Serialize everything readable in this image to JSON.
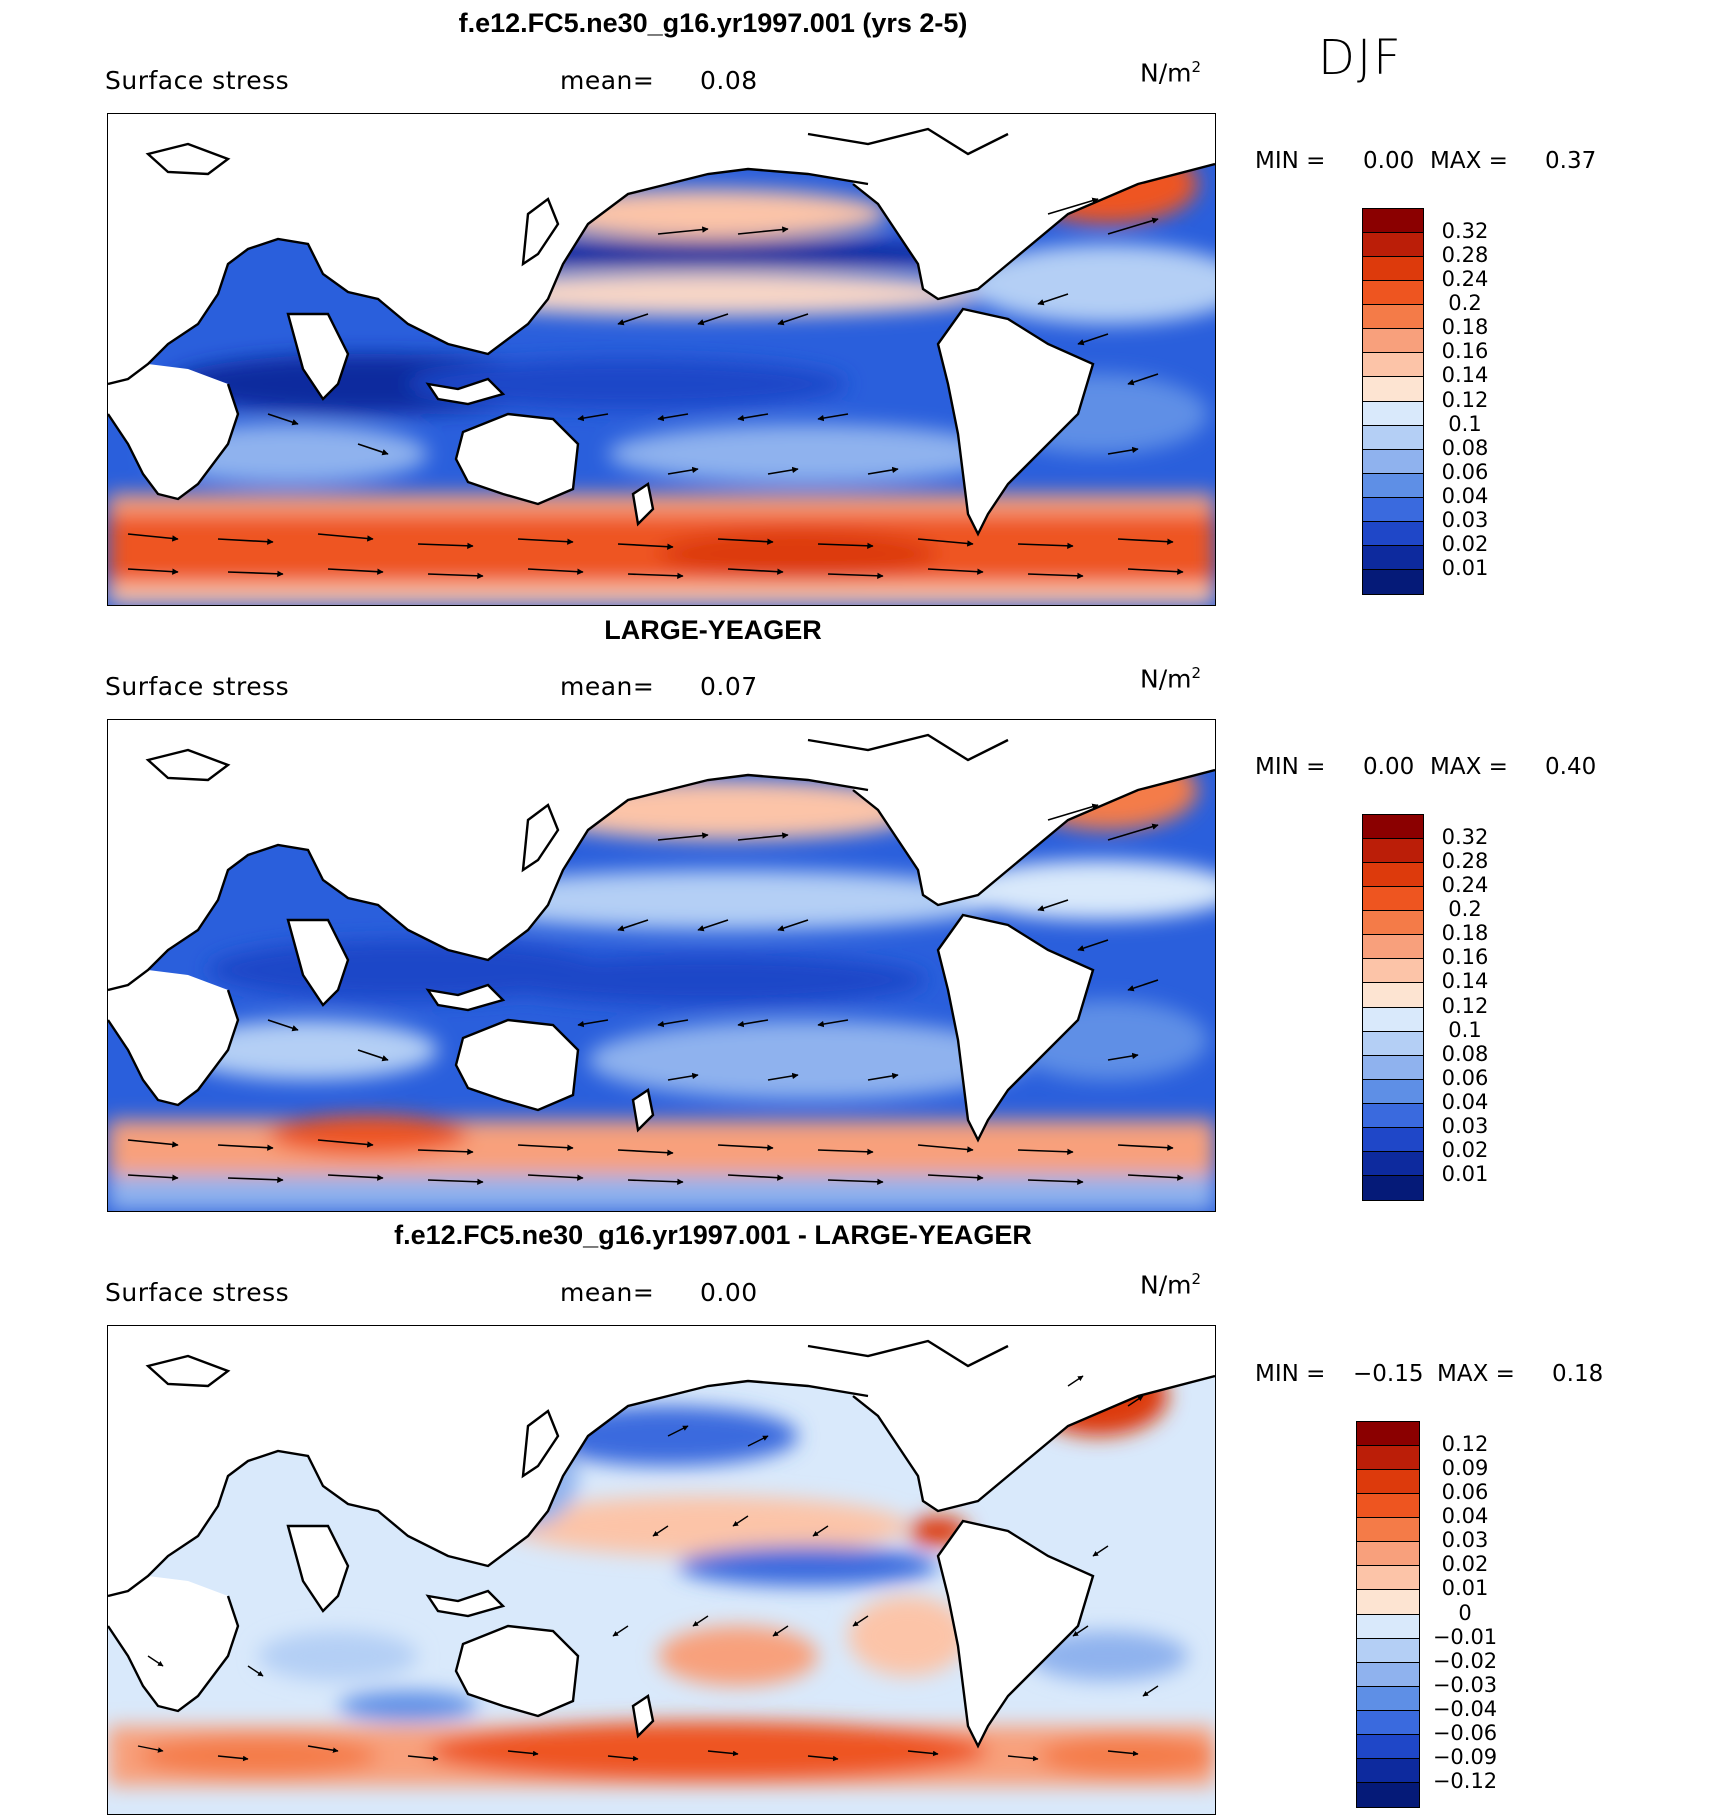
{
  "season": "DJF",
  "panels": [
    {
      "title": "f.e12.FC5.ne30_g16.yr1997.001 (yrs 2-5)",
      "variable": "Surface stress",
      "mean_label": "mean=",
      "mean_value": "0.08",
      "units": "N/m",
      "units_exp": "2",
      "min_label": "MIN =",
      "min_value": "0.00",
      "max_label": "MAX =",
      "max_value": "0.37",
      "levels": [
        "0.32",
        "0.28",
        "0.24",
        "0.2",
        "0.18",
        "0.16",
        "0.14",
        "0.12",
        "0.1",
        "0.08",
        "0.06",
        "0.04",
        "0.03",
        "0.02",
        "0.01"
      ],
      "colors": [
        "#8b0000",
        "#bb1e08",
        "#dd3a0c",
        "#ee5520",
        "#f47b48",
        "#f8a07c",
        "#fcc4a8",
        "#fde4d2",
        "#d9e9fb",
        "#b4cff5",
        "#8fb2ee",
        "#5e8fe6",
        "#3a6ade",
        "#1f47c8",
        "#0d2a9e",
        "#051a78"
      ]
    },
    {
      "title": "LARGE-YEAGER",
      "variable": "Surface stress",
      "mean_label": "mean=",
      "mean_value": "0.07",
      "units": "N/m",
      "units_exp": "2",
      "min_label": "MIN =",
      "min_value": "0.00",
      "max_label": "MAX =",
      "max_value": "0.40",
      "levels": [
        "0.32",
        "0.28",
        "0.24",
        "0.2",
        "0.18",
        "0.16",
        "0.14",
        "0.12",
        "0.1",
        "0.08",
        "0.06",
        "0.04",
        "0.03",
        "0.02",
        "0.01"
      ],
      "colors": [
        "#8b0000",
        "#bb1e08",
        "#dd3a0c",
        "#ee5520",
        "#f47b48",
        "#f8a07c",
        "#fcc4a8",
        "#fde4d2",
        "#d9e9fb",
        "#b4cff5",
        "#8fb2ee",
        "#5e8fe6",
        "#3a6ade",
        "#1f47c8",
        "#0d2a9e",
        "#051a78"
      ]
    },
    {
      "title": "f.e12.FC5.ne30_g16.yr1997.001 - LARGE-YEAGER",
      "variable": "Surface stress",
      "mean_label": "mean=",
      "mean_value": "0.00",
      "units": "N/m",
      "units_exp": "2",
      "min_label": "MIN =",
      "min_value": "−0.15",
      "max_label": "MAX =",
      "max_value": "0.18",
      "levels": [
        "0.12",
        "0.09",
        "0.06",
        "0.04",
        "0.03",
        "0.02",
        "0.01",
        "0",
        "−0.01",
        "−0.02",
        "−0.03",
        "−0.04",
        "−0.06",
        "−0.09",
        "−0.12"
      ],
      "colors": [
        "#8b0000",
        "#bb1e08",
        "#dd3a0c",
        "#ee5520",
        "#f47b48",
        "#f8a07c",
        "#fcc4a8",
        "#fde4d2",
        "#d9e9fb",
        "#b4cff5",
        "#8fb2ee",
        "#5e8fe6",
        "#3a6ade",
        "#1f47c8",
        "#0d2a9e",
        "#051a78"
      ]
    }
  ]
}
